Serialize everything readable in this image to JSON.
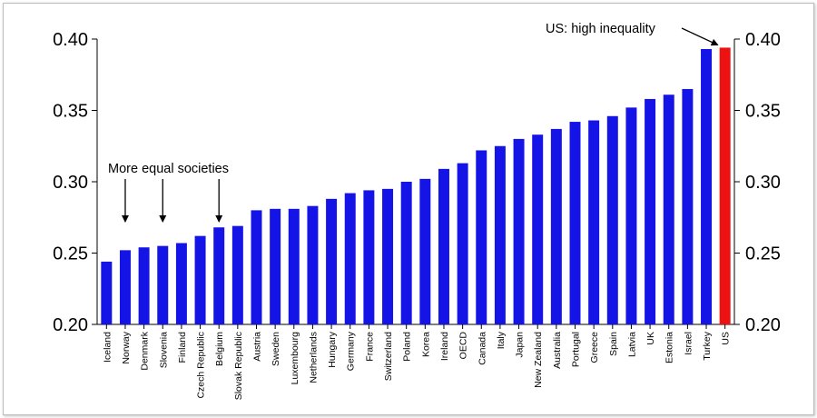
{
  "chart_data": {
    "type": "bar",
    "title": "",
    "xlabel": "",
    "ylabel": "",
    "ylim": [
      0.2,
      0.4
    ],
    "yticks": [
      "0.20",
      "0.25",
      "0.30",
      "0.35",
      "0.40"
    ],
    "grid": false,
    "categories": [
      "Iceland",
      "Norway",
      "Denmark",
      "Slovenia",
      "Finland",
      "Czech Republic",
      "Belgium",
      "Slovak Republic",
      "Austria",
      "Sweden",
      "Luxembourg",
      "Netherlands",
      "Hungary",
      "Germany",
      "France",
      "Switzerland",
      "Poland",
      "Korea",
      "Ireland",
      "OECD",
      "Canada",
      "Italy",
      "Japan",
      "New Zealand",
      "Australia",
      "Portugal",
      "Greece",
      "Spain",
      "Latvia",
      "UK",
      "Estonia",
      "Israel",
      "Turkey",
      "US"
    ],
    "values": [
      0.244,
      0.252,
      0.254,
      0.255,
      0.257,
      0.262,
      0.268,
      0.269,
      0.28,
      0.281,
      0.281,
      0.283,
      0.288,
      0.292,
      0.294,
      0.295,
      0.3,
      0.302,
      0.309,
      0.313,
      0.322,
      0.325,
      0.33,
      0.333,
      0.337,
      0.342,
      0.343,
      0.346,
      0.352,
      0.358,
      0.361,
      0.365,
      0.393,
      0.394
    ],
    "colors": {
      "default": "#1414e6",
      "highlight": "#ee1111",
      "highlight_category": "US"
    },
    "annotations": [
      {
        "text": "More equal societies",
        "targets": [
          "Norway",
          "Slovenia",
          "Belgium"
        ]
      },
      {
        "text": "US: high inequality",
        "target": "US"
      }
    ]
  }
}
